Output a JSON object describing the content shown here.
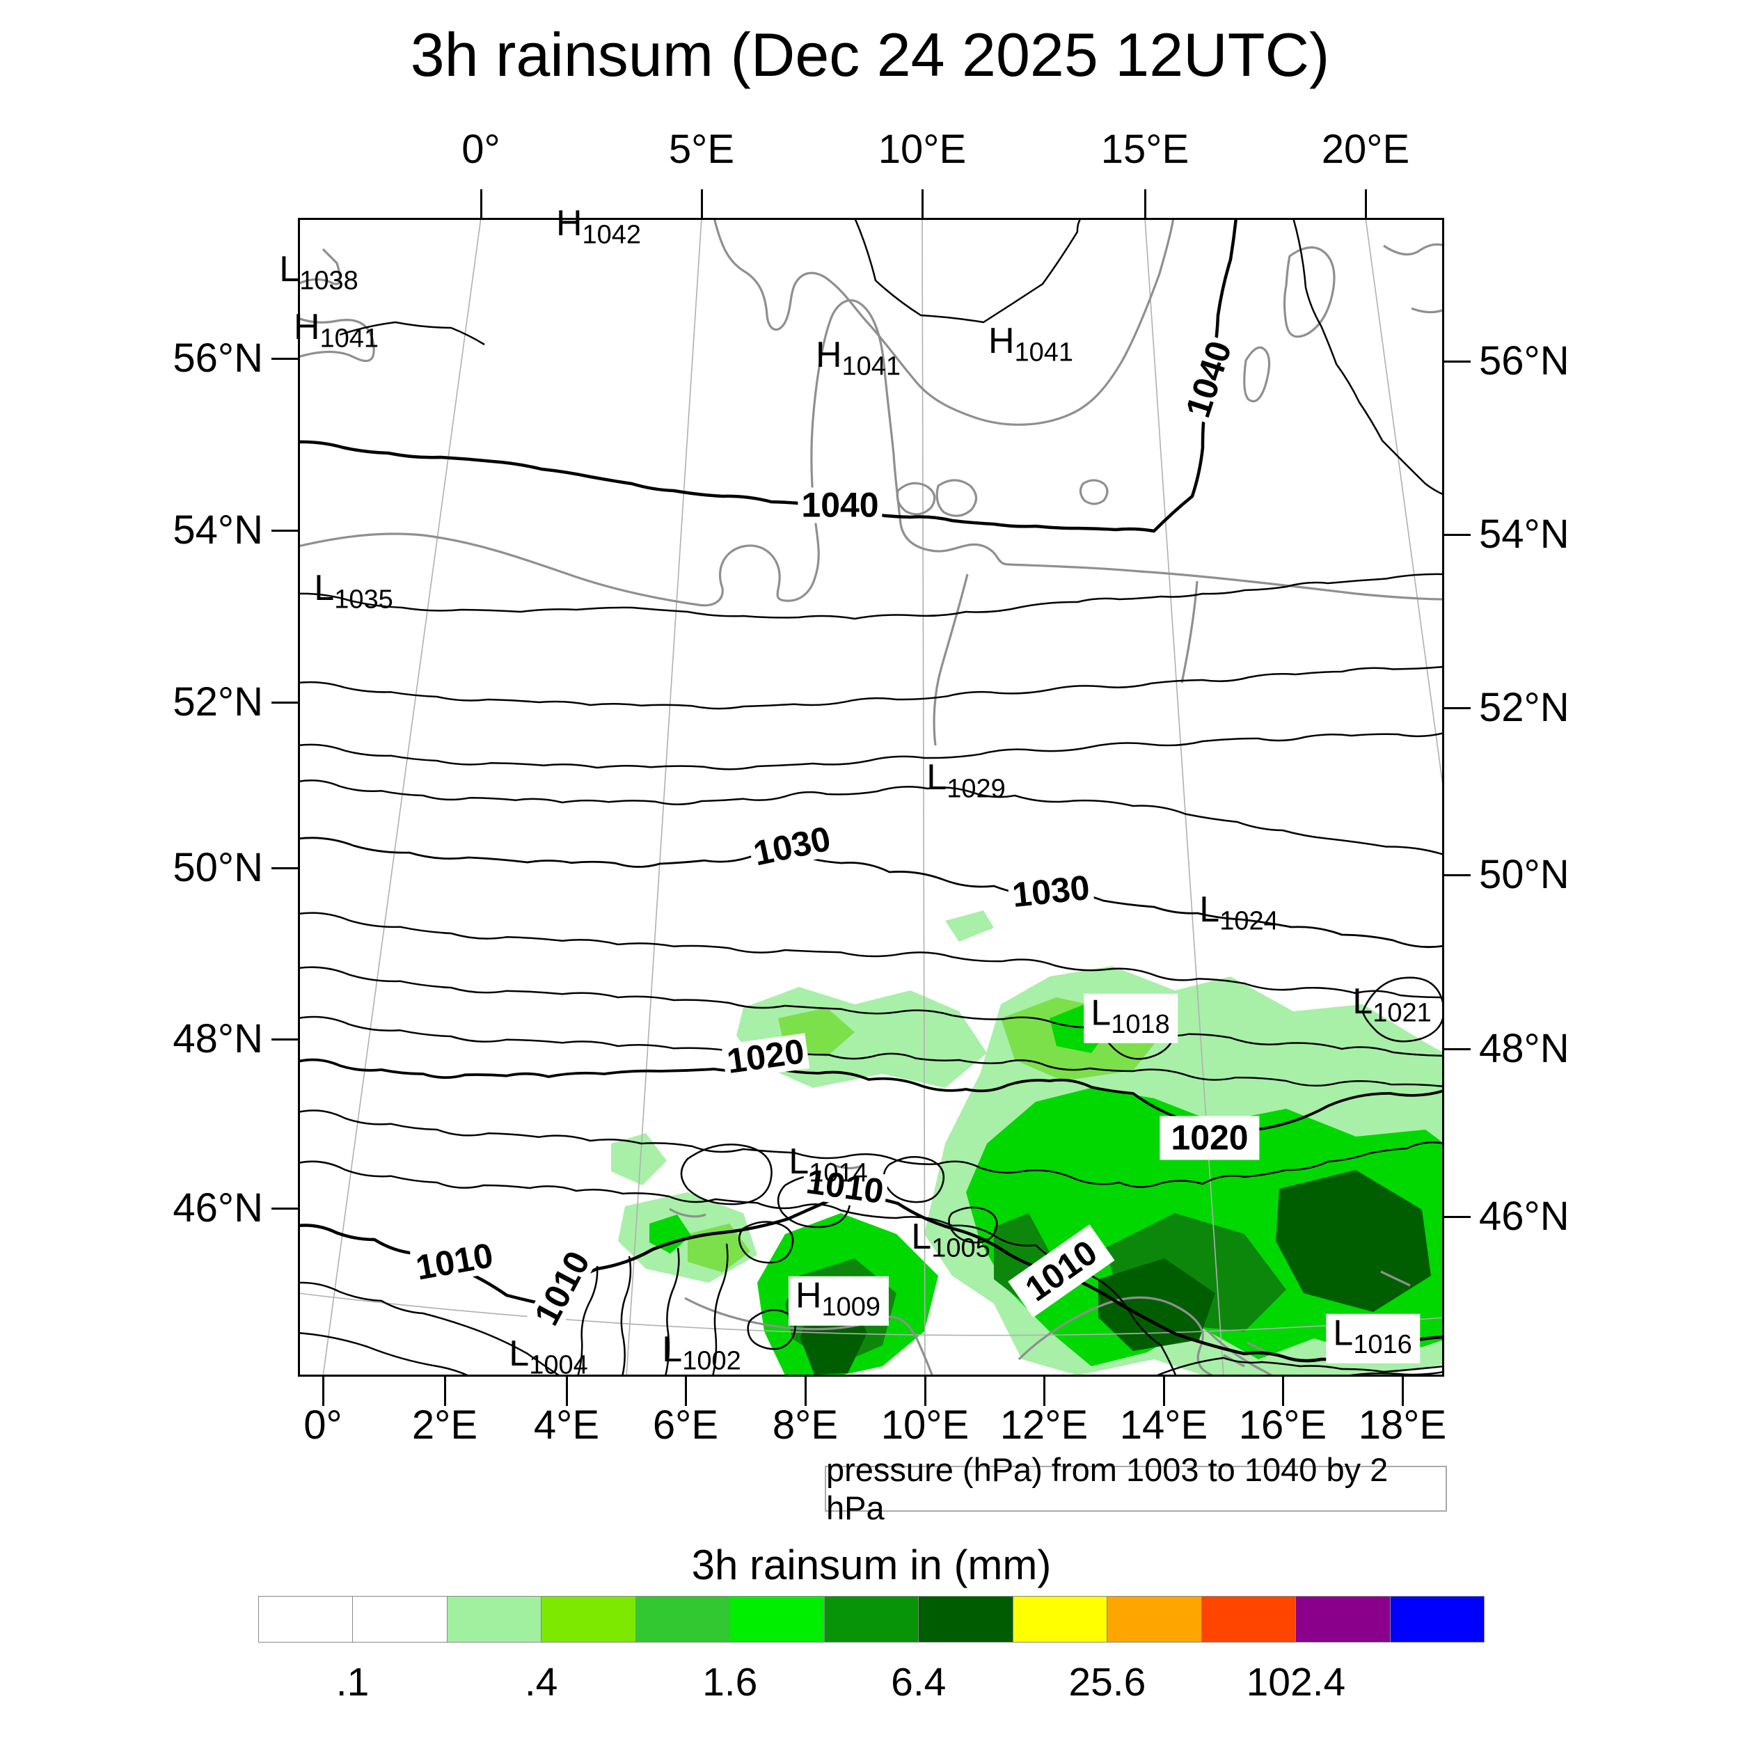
{
  "title": "3h rainsum (Dec 24 2025 12UTC)",
  "map": {
    "top_axis_labels": [
      "0°",
      "5°E",
      "10°E",
      "15°E",
      "20°E"
    ],
    "bottom_axis_labels": [
      "0°",
      "2°E",
      "4°E",
      "6°E",
      "8°E",
      "10°E",
      "12°E",
      "14°E",
      "16°E",
      "18°E"
    ],
    "left_axis_labels": [
      "56°N",
      "54°N",
      "52°N",
      "50°N",
      "48°N",
      "46°N"
    ],
    "right_axis_labels": [
      "56°N",
      "54°N",
      "52°N",
      "50°N",
      "48°N",
      "46°N"
    ],
    "pressure_markers": [
      {
        "id": "h1042",
        "letter": "H",
        "value": "1042"
      },
      {
        "id": "l1038",
        "letter": "L",
        "value": "1038"
      },
      {
        "id": "h1041a",
        "letter": "H",
        "value": "1041"
      },
      {
        "id": "h1041b",
        "letter": "H",
        "value": "1041"
      },
      {
        "id": "h1041c",
        "letter": "H",
        "value": "1041"
      },
      {
        "id": "l1035",
        "letter": "L",
        "value": "1035"
      },
      {
        "id": "l1029",
        "letter": "L",
        "value": "1029"
      },
      {
        "id": "l1024",
        "letter": "L",
        "value": "1024"
      },
      {
        "id": "l1021",
        "letter": "L",
        "value": "1021"
      },
      {
        "id": "l1018",
        "letter": "L",
        "value": "1018"
      },
      {
        "id": "l1014",
        "letter": "L",
        "value": "1014"
      },
      {
        "id": "l1005",
        "letter": "L",
        "value": "1005"
      },
      {
        "id": "h1009",
        "letter": "H",
        "value": "1009"
      },
      {
        "id": "l1004",
        "letter": "L",
        "value": "1004"
      },
      {
        "id": "l1002",
        "letter": "L",
        "value": "1002"
      },
      {
        "id": "l1016",
        "letter": "L",
        "value": "1016"
      }
    ],
    "contour_inline_labels": [
      {
        "id": "c1040a",
        "text": "1040"
      },
      {
        "id": "c1040b",
        "text": "1040"
      },
      {
        "id": "c1030a",
        "text": "1030"
      },
      {
        "id": "c1030b",
        "text": "1030"
      },
      {
        "id": "c1020a",
        "text": "1020"
      },
      {
        "id": "c1020b",
        "text": "1020"
      },
      {
        "id": "c1010a",
        "text": "1010"
      },
      {
        "id": "c1010b",
        "text": "1010"
      },
      {
        "id": "c1010c",
        "text": "1010"
      },
      {
        "id": "c1010d",
        "text": "1010"
      }
    ]
  },
  "caption": "pressure (hPa) from 1003 to 1040 by 2 hPa",
  "colorbar": {
    "title": "3h rainsum in (mm)",
    "tick_labels": [
      ".1",
      ".4",
      "1.6",
      "6.4",
      "25.6",
      "102.4"
    ],
    "colors": [
      "#ffffff",
      "#ffffff",
      "#a0f0a0",
      "#7de800",
      "#32c832",
      "#00ee00",
      "#089408",
      "#005c00",
      "#ffff00",
      "#ffa500",
      "#ff4500",
      "#8b008b",
      "#0000ff"
    ]
  },
  "chart_data": {
    "type": "heatmap",
    "title": "3h rainsum (Dec 24 2025 12UTC)",
    "valid_time": "Dec 24 2025 12UTC",
    "accumulation_hours": 3,
    "map_extent": {
      "lon_e_range": [
        -4,
        19
      ],
      "lat_n_range": [
        44,
        57.5
      ]
    },
    "axes": {
      "lon_ticks_top": [
        "0°",
        "5°E",
        "10°E",
        "15°E",
        "20°E"
      ],
      "lon_ticks_bottom": [
        "0°",
        "2°E",
        "4°E",
        "6°E",
        "8°E",
        "10°E",
        "12°E",
        "14°E",
        "16°E",
        "18°E"
      ],
      "lat_ticks": [
        "56°N",
        "54°N",
        "52°N",
        "50°N",
        "48°N",
        "46°N"
      ]
    },
    "shaded_field": {
      "name": "3h rainsum",
      "units": "mm",
      "scale_boundaries_mm": [
        0.1,
        0.2,
        0.4,
        0.8,
        1.6,
        3.2,
        6.4,
        12.8,
        25.6,
        51.2,
        102.4,
        204.8
      ],
      "labeled_ticks_mm": [
        0.1,
        0.4,
        1.6,
        6.4,
        25.6,
        102.4
      ],
      "palette": [
        "#ffffff",
        "#ffffff",
        "#a0f0a0",
        "#7de800",
        "#32c832",
        "#00ee00",
        "#089408",
        "#005c00",
        "#ffff00",
        "#ffa500",
        "#ff4500",
        "#8b008b",
        "#0000ff"
      ],
      "max_category_on_map_mm": "6.4-12.8",
      "main_rain_region": "southeastern quadrant (Alps / Austria / Slovenia / N Italy, ~9-19E, 44.5-48.5N) with dark-green cores; lighter patches along the Alpine ridge near 47-48N"
    },
    "contour_field": {
      "name": "pressure",
      "units": "hPa",
      "min": 1003,
      "max": 1040,
      "interval": 2,
      "labeled_contours": [
        1040,
        1030,
        1020,
        1010
      ]
    },
    "pressure_centers": [
      {
        "type": "H",
        "value_hpa": 1042,
        "lon_e": 2.7,
        "lat_n": 57.5
      },
      {
        "type": "L",
        "value_hpa": 1038,
        "lon_e": -3.4,
        "lat_n": 57.0
      },
      {
        "type": "H",
        "value_hpa": 1041,
        "lon_e": -2.8,
        "lat_n": 56.3
      },
      {
        "type": "H",
        "value_hpa": 1041,
        "lon_e": 8.6,
        "lat_n": 56.0
      },
      {
        "type": "H",
        "value_hpa": 1041,
        "lon_e": 12.4,
        "lat_n": 56.1
      },
      {
        "type": "L",
        "value_hpa": 1035,
        "lon_e": -1.5,
        "lat_n": 53.2
      },
      {
        "type": "L",
        "value_hpa": 1029,
        "lon_e": 10.9,
        "lat_n": 50.9
      },
      {
        "type": "L",
        "value_hpa": 1024,
        "lon_e": 15.9,
        "lat_n": 49.4
      },
      {
        "type": "L",
        "value_hpa": 1021,
        "lon_e": 18.6,
        "lat_n": 48.3
      },
      {
        "type": "L",
        "value_hpa": 1018,
        "lon_e": 13.8,
        "lat_n": 48.2
      },
      {
        "type": "L",
        "value_hpa": 1014,
        "lon_e": 8.4,
        "lat_n": 46.4
      },
      {
        "type": "L",
        "value_hpa": 1005,
        "lon_e": 10.5,
        "lat_n": 45.6
      },
      {
        "type": "H",
        "value_hpa": 1009,
        "lon_e": 8.6,
        "lat_n": 44.8
      },
      {
        "type": "L",
        "value_hpa": 1004,
        "lon_e": 3.8,
        "lat_n": 44.2
      },
      {
        "type": "L",
        "value_hpa": 1002,
        "lon_e": 6.4,
        "lat_n": 44.2
      },
      {
        "type": "L",
        "value_hpa": 1016,
        "lon_e": 17.6,
        "lat_n": 44.4
      }
    ]
  }
}
